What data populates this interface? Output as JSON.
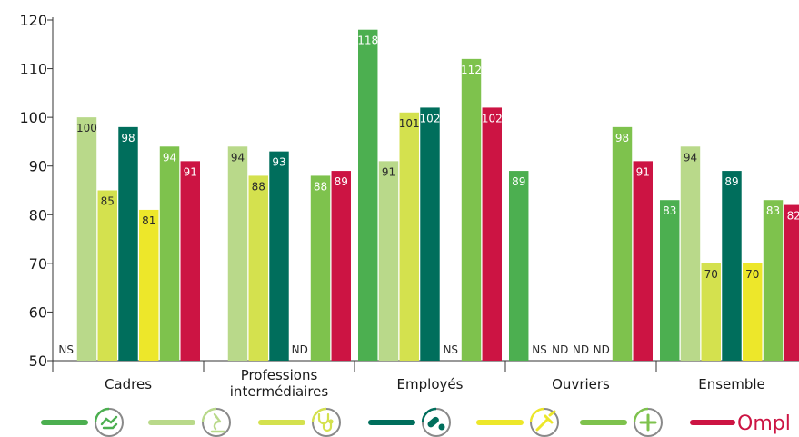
{
  "chart_data": {
    "type": "bar",
    "ylim": [
      50,
      120
    ],
    "yticks": [
      50,
      60,
      70,
      80,
      90,
      100,
      110,
      120
    ],
    "grid": false,
    "legend_position": "bottom",
    "categories": [
      [
        "Cadres"
      ],
      [
        "Professions",
        "intermédiaires"
      ],
      [
        "Employés"
      ],
      [
        "Ouvriers"
      ],
      [
        "Ensemble"
      ]
    ],
    "series": [
      {
        "color": "#4caf50",
        "icon": "handshake-icon",
        "values": [
          null,
          null,
          118,
          89,
          83
        ],
        "labels": [
          "NS",
          "",
          "118",
          "89",
          "83"
        ]
      },
      {
        "color": "#b9d98a",
        "icon": "microscope-icon",
        "values": [
          100,
          94,
          91,
          null,
          94
        ],
        "labels": [
          "100",
          "94",
          "91",
          "NS",
          "94"
        ]
      },
      {
        "color": "#d4e14e",
        "icon": "stethoscope-icon",
        "values": [
          85,
          88,
          101,
          null,
          70
        ],
        "labels": [
          "85",
          "88",
          "101",
          "ND",
          "70"
        ]
      },
      {
        "color": "#006e5c",
        "icon": "pills-icon",
        "values": [
          98,
          93,
          102,
          null,
          89
        ],
        "labels": [
          "98",
          "93",
          "102",
          "ND",
          "89"
        ]
      },
      {
        "color": "#ede72a",
        "icon": "syringe-icon",
        "values": [
          81,
          null,
          null,
          null,
          70
        ],
        "labels": [
          "81",
          "ND",
          "NS",
          "ND",
          "70"
        ]
      },
      {
        "color": "#7ec24d",
        "icon": "plus-icon",
        "values": [
          94,
          88,
          112,
          98,
          83
        ],
        "labels": [
          "94",
          "88",
          "112",
          "98",
          "83"
        ]
      },
      {
        "color": "#cc1443",
        "icon": "ompl-logo",
        "values": [
          91,
          89,
          102,
          91,
          82
        ],
        "labels": [
          "91",
          "89",
          "102",
          "91",
          "82"
        ]
      }
    ]
  },
  "brand": {
    "text": "Ompl",
    "color": "#cc1443"
  }
}
